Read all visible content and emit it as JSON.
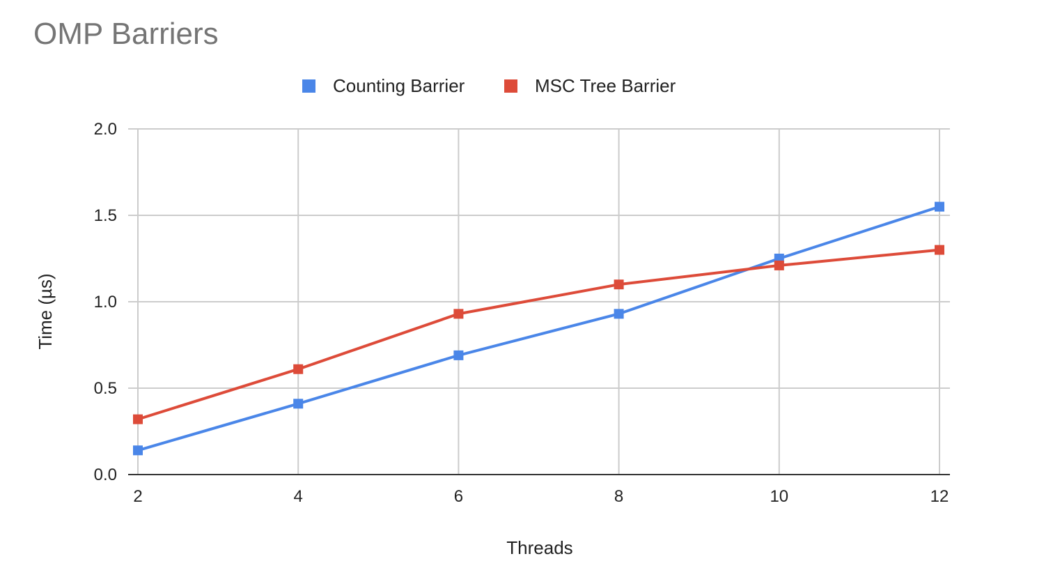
{
  "chart_data": {
    "type": "line",
    "title": "OMP Barriers",
    "xlabel": "Threads",
    "ylabel": "Time (µs)",
    "x": [
      2,
      4,
      6,
      8,
      10,
      12
    ],
    "x_ticks": [
      "2",
      "4",
      "6",
      "8",
      "10",
      "12"
    ],
    "y_ticks": [
      "0.0",
      "0.5",
      "1.0",
      "1.5",
      "2.0"
    ],
    "xlim": [
      2,
      12
    ],
    "ylim": [
      0,
      2
    ],
    "grid": true,
    "legend_position": "top",
    "series": [
      {
        "name": "Counting Barrier",
        "color": "#4a86e8",
        "values": [
          0.14,
          0.41,
          0.69,
          0.93,
          1.25,
          1.55
        ]
      },
      {
        "name": "MSC Tree Barrier",
        "color": "#dd4b39",
        "values": [
          0.32,
          0.61,
          0.93,
          1.1,
          1.21,
          1.3
        ]
      }
    ]
  }
}
